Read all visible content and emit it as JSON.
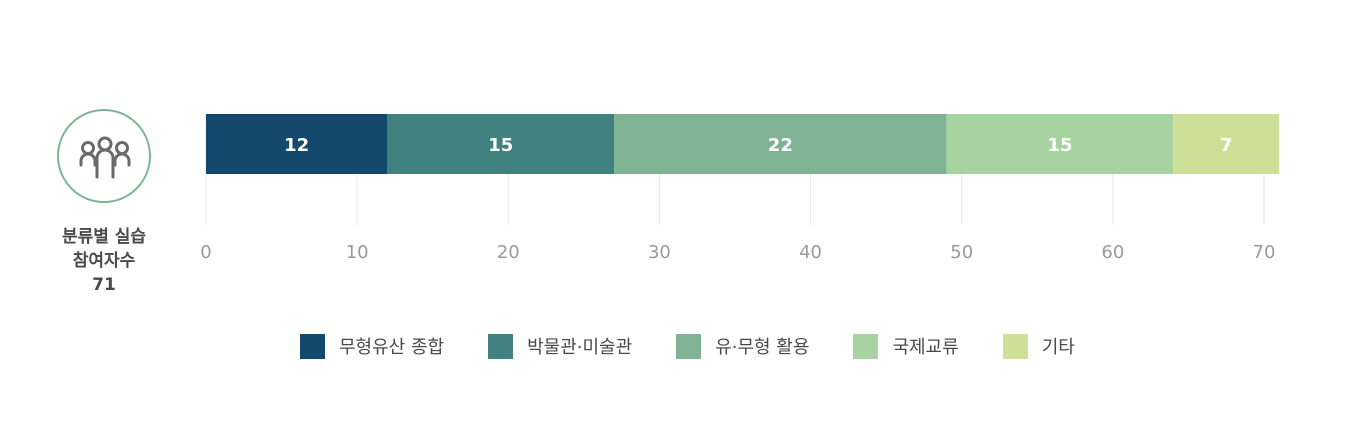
{
  "summary": {
    "icon": "people-group-icon",
    "line1": "분류별 실습",
    "line2": "참여자수",
    "total": "71"
  },
  "chart_data": {
    "type": "bar",
    "orientation": "horizontal-stacked",
    "categories": [
      "무형유산 종합",
      "박물관·미술관",
      "유·무형 활용",
      "국제교류",
      "기타"
    ],
    "values": [
      12,
      15,
      22,
      15,
      7
    ],
    "colors": [
      "#14486c",
      "#41817f",
      "#7fb393",
      "#a6d39f",
      "#cde098"
    ],
    "xlim": [
      0,
      70
    ],
    "xticks": [
      "0",
      "10",
      "20",
      "30",
      "40",
      "50",
      "60",
      "70"
    ],
    "grid": true,
    "legend_position": "bottom"
  }
}
